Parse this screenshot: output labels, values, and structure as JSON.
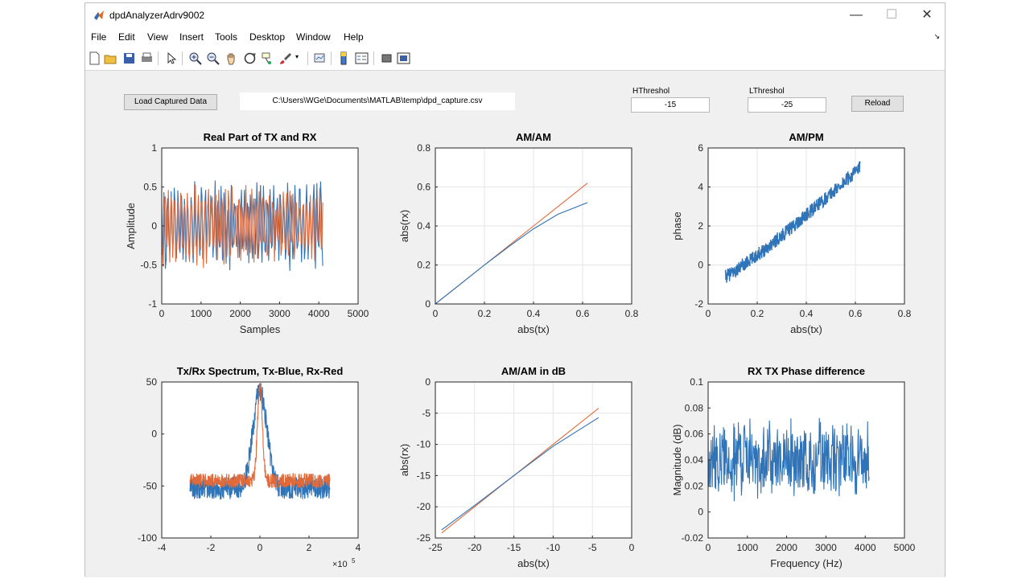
{
  "window": {
    "title": "dpdAnalyzerAdrv9002"
  },
  "window_controls": {
    "minimize": "—",
    "maximize": "☐",
    "close": "✕"
  },
  "menu": [
    "File",
    "Edit",
    "View",
    "Insert",
    "Tools",
    "Desktop",
    "Window",
    "Help"
  ],
  "toolbar_icons": [
    "new-figure-icon",
    "open-icon",
    "save-icon",
    "print-icon",
    "select-arrow-icon",
    "zoom-in-icon",
    "zoom-out-icon",
    "pan-hand-icon",
    "rotate-3d-icon",
    "data-cursor-icon",
    "brush-icon",
    "brush-dropdown-icon",
    "link-plot-icon",
    "colorbar-icon",
    "legend-icon",
    "hide-plot-tools-icon",
    "show-plot-tools-icon"
  ],
  "controls": {
    "load_button": "Load Captured Data",
    "file_path": "C:\\Users\\WGe\\Documents\\MATLAB\\temp\\dpd_capture.csv",
    "hthreshold_label": "HThreshol",
    "hthreshold_value": "-15",
    "lthreshold_label": "LThreshol",
    "lthreshold_value": "-25",
    "reload_button": "Reload"
  },
  "colors": {
    "blue": "#2f73b8",
    "red": "#e06a3a",
    "grid": "#e6e6e6"
  },
  "chart_data": [
    {
      "type": "line",
      "title": "Real Part of TX and RX",
      "xlabel": "Samples",
      "ylabel": "Amplitude",
      "xlim": [
        0,
        5000
      ],
      "ylim": [
        -1,
        1
      ],
      "xticks": [
        0,
        1000,
        2000,
        3000,
        4000,
        5000
      ],
      "yticks": [
        -1,
        -0.5,
        0,
        0.5,
        1
      ],
      "grid": false,
      "series": [
        {
          "color": "#2f73b8",
          "x_range": [
            0,
            4100
          ],
          "samples": 4096,
          "peak": 0.6,
          "style": "oscillating"
        },
        {
          "color": "#e06a3a",
          "x_range": [
            0,
            4100
          ],
          "samples": 4096,
          "peak": 0.55,
          "style": "oscillating"
        }
      ]
    },
    {
      "type": "line",
      "title": "AM/AM",
      "xlabel": "abs(tx)",
      "ylabel": "abs(rx)",
      "xlim": [
        0,
        0.8
      ],
      "ylim": [
        0,
        0.8
      ],
      "xticks": [
        0,
        0.2,
        0.4,
        0.6,
        0.8
      ],
      "yticks": [
        0,
        0.2,
        0.4,
        0.6,
        0.8
      ],
      "grid": true,
      "series": [
        {
          "color": "#e06a3a",
          "x": [
            0,
            0.1,
            0.2,
            0.3,
            0.4,
            0.5,
            0.62
          ],
          "y": [
            0,
            0.1,
            0.2,
            0.3,
            0.4,
            0.5,
            0.62
          ]
        },
        {
          "color": "#2f73b8",
          "x": [
            0,
            0.1,
            0.2,
            0.3,
            0.4,
            0.5,
            0.62
          ],
          "y": [
            0,
            0.1,
            0.2,
            0.295,
            0.385,
            0.46,
            0.52
          ]
        }
      ]
    },
    {
      "type": "line",
      "title": "AM/PM",
      "xlabel": "abs(tx)",
      "ylabel": "phase",
      "xlim": [
        0,
        0.8
      ],
      "ylim": [
        -2,
        6
      ],
      "xticks": [
        0,
        0.2,
        0.4,
        0.6,
        0.8
      ],
      "yticks": [
        -2,
        0,
        2,
        4,
        6
      ],
      "grid": true,
      "series": [
        {
          "color": "#2f73b8",
          "x_range": [
            0.07,
            0.62
          ],
          "y_range": [
            -0.6,
            5.0
          ],
          "style": "noisy-trend"
        }
      ]
    },
    {
      "type": "line",
      "title": "Tx/Rx Spectrum, Tx-Blue, Rx-Red",
      "xlabel": "",
      "ylabel": "",
      "xlim": [
        -4,
        4
      ],
      "ylim": [
        -100,
        50
      ],
      "xticks": [
        -4,
        -2,
        0,
        2,
        4
      ],
      "yticks": [
        -100,
        -50,
        0,
        50
      ],
      "x_multiplier": "×10",
      "x_multiplier_exp": "5",
      "grid": false,
      "series": [
        {
          "color": "#2f73b8",
          "x_range": [
            -2.85,
            2.85
          ],
          "floor": -52,
          "peak": 42,
          "style": "spectrum"
        },
        {
          "color": "#e06a3a",
          "x_range": [
            -2.85,
            2.85
          ],
          "floor": -45,
          "peak": 45,
          "style": "spectrum"
        }
      ]
    },
    {
      "type": "line",
      "title": "AM/AM in dB",
      "xlabel": "abs(tx)",
      "ylabel": "abs(rx)",
      "xlim": [
        -25,
        0
      ],
      "ylim": [
        -25,
        0
      ],
      "xticks": [
        -25,
        -20,
        -15,
        -10,
        -5,
        0
      ],
      "yticks": [
        -25,
        -20,
        -15,
        -10,
        -5,
        0
      ],
      "grid": true,
      "series": [
        {
          "color": "#e06a3a",
          "x": [
            -24.2,
            -20,
            -15,
            -10,
            -4.2
          ],
          "y": [
            -24.2,
            -20,
            -15,
            -10,
            -4.2
          ]
        },
        {
          "color": "#2f73b8",
          "x": [
            -24.2,
            -20,
            -15,
            -10,
            -4.2
          ],
          "y": [
            -23.7,
            -19.8,
            -15,
            -10.3,
            -5.7
          ]
        }
      ]
    },
    {
      "type": "line",
      "title": "RX TX Phase difference",
      "xlabel": "Frequency (Hz)",
      "ylabel": "Magnitude (dB)",
      "xlim": [
        0,
        5000
      ],
      "ylim": [
        -0.02,
        0.1
      ],
      "xticks": [
        0,
        1000,
        2000,
        3000,
        4000,
        5000
      ],
      "yticks": [
        -0.02,
        0,
        0.02,
        0.04,
        0.06,
        0.08,
        0.1
      ],
      "grid": false,
      "series": [
        {
          "color": "#2f73b8",
          "x_range": [
            0,
            4100
          ],
          "center": 0.04,
          "spread": 0.03,
          "style": "noise"
        }
      ]
    }
  ]
}
